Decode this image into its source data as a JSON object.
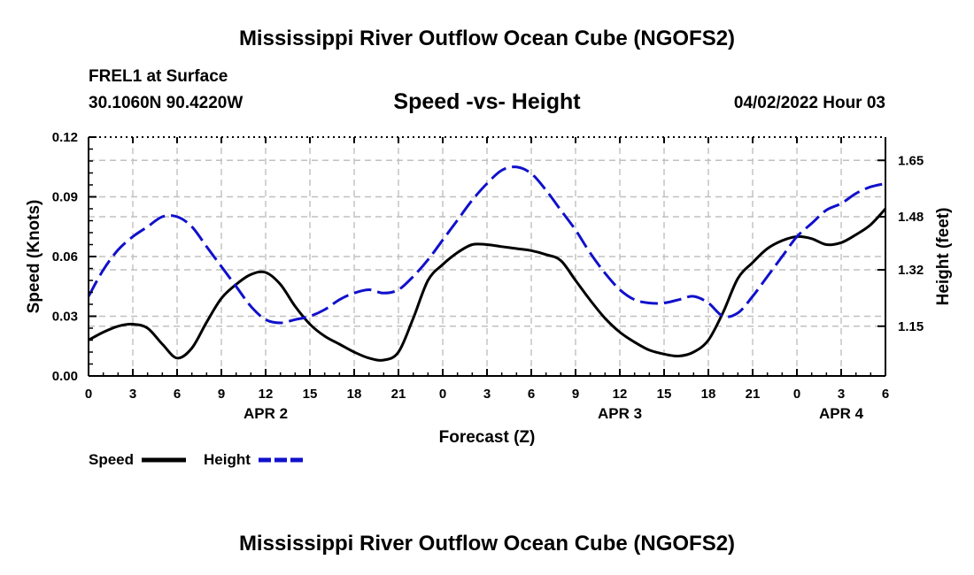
{
  "chart_data": {
    "type": "line",
    "title": "Mississippi River Outflow Ocean Cube (NGOFS2)",
    "footer_title": "Mississippi River Outflow Ocean Cube (NGOFS2)",
    "station": "FREL1 at Surface",
    "coords": "30.1060N  90.4220W",
    "subtitle": "Speed -vs- Height",
    "datetime": "04/02/2022 Hour 03",
    "xlabel": "Forecast (Z)",
    "ylabel_left": "Speed (Knots)",
    "ylabel_right": "Height (feet)",
    "x_ticks": [
      0,
      3,
      6,
      9,
      12,
      15,
      18,
      21,
      24,
      27,
      30,
      33,
      36,
      39,
      42,
      45,
      48,
      51,
      54
    ],
    "x_tick_labels": [
      "0",
      "3",
      "6",
      "9",
      "12",
      "15",
      "18",
      "21",
      "0",
      "3",
      "6",
      "9",
      "12",
      "15",
      "18",
      "21",
      "0",
      "3",
      "6"
    ],
    "xlim": [
      0,
      54
    ],
    "date_labels": [
      {
        "text": "APR 2",
        "x": 12
      },
      {
        "text": "APR 3",
        "x": 36
      },
      {
        "text": "APR 4",
        "x": 51
      }
    ],
    "y_left": {
      "ylim": [
        0,
        0.12
      ],
      "ticks": [
        0,
        0.03,
        0.06,
        0.09,
        0.12
      ],
      "tick_labels": [
        "0.00",
        "0.03",
        "0.06",
        "0.09",
        "0.12"
      ]
    },
    "y_right": {
      "ylim": [
        1.0,
        1.72
      ],
      "ticks": [
        1.15,
        1.32,
        1.48,
        1.65
      ],
      "tick_labels": [
        "1.15",
        "1.32",
        "1.48",
        "1.65"
      ]
    },
    "grid": true,
    "legend_position": "bottom-left",
    "series": [
      {
        "name": "Speed",
        "axis": "left",
        "color": "#000000",
        "dash": "solid",
        "x": [
          0,
          1,
          2,
          3,
          4,
          5,
          6,
          7,
          8,
          9,
          10,
          11,
          12,
          13,
          14,
          15,
          16,
          17,
          18,
          19,
          20,
          21,
          22,
          23,
          24,
          25,
          26,
          27,
          28,
          29,
          30,
          31,
          32,
          33,
          34,
          35,
          36,
          37,
          38,
          39,
          40,
          41,
          42,
          43,
          44,
          45,
          46,
          47,
          48,
          49,
          50,
          51,
          52,
          53,
          54
        ],
        "values": [
          0.018,
          0.022,
          0.025,
          0.026,
          0.024,
          0.016,
          0.009,
          0.014,
          0.027,
          0.039,
          0.046,
          0.051,
          0.052,
          0.046,
          0.035,
          0.026,
          0.02,
          0.016,
          0.012,
          0.009,
          0.008,
          0.012,
          0.029,
          0.048,
          0.056,
          0.062,
          0.066,
          0.066,
          0.065,
          0.064,
          0.063,
          0.061,
          0.058,
          0.048,
          0.038,
          0.029,
          0.022,
          0.017,
          0.013,
          0.011,
          0.01,
          0.012,
          0.018,
          0.032,
          0.049,
          0.057,
          0.064,
          0.068,
          0.07,
          0.069,
          0.066,
          0.067,
          0.071,
          0.076,
          0.084
        ]
      },
      {
        "name": "Height",
        "axis": "right",
        "color": "#1010cc",
        "dash": "dashed",
        "x": [
          0,
          1,
          2,
          3,
          4,
          5,
          6,
          7,
          8,
          9,
          10,
          11,
          12,
          13,
          14,
          15,
          16,
          17,
          18,
          19,
          20,
          21,
          22,
          23,
          24,
          25,
          26,
          27,
          28,
          29,
          30,
          31,
          32,
          33,
          34,
          35,
          36,
          37,
          38,
          39,
          40,
          41,
          42,
          43,
          44,
          45,
          46,
          47,
          48,
          49,
          50,
          51,
          52,
          53,
          54
        ],
        "values": [
          1.24,
          1.32,
          1.38,
          1.42,
          1.45,
          1.48,
          1.48,
          1.45,
          1.39,
          1.33,
          1.27,
          1.21,
          1.17,
          1.16,
          1.17,
          1.18,
          1.2,
          1.23,
          1.25,
          1.26,
          1.25,
          1.26,
          1.3,
          1.35,
          1.41,
          1.47,
          1.53,
          1.58,
          1.62,
          1.63,
          1.61,
          1.56,
          1.5,
          1.44,
          1.37,
          1.31,
          1.26,
          1.23,
          1.22,
          1.22,
          1.23,
          1.24,
          1.22,
          1.18,
          1.19,
          1.24,
          1.3,
          1.36,
          1.42,
          1.46,
          1.5,
          1.52,
          1.55,
          1.57,
          1.58
        ]
      }
    ]
  }
}
